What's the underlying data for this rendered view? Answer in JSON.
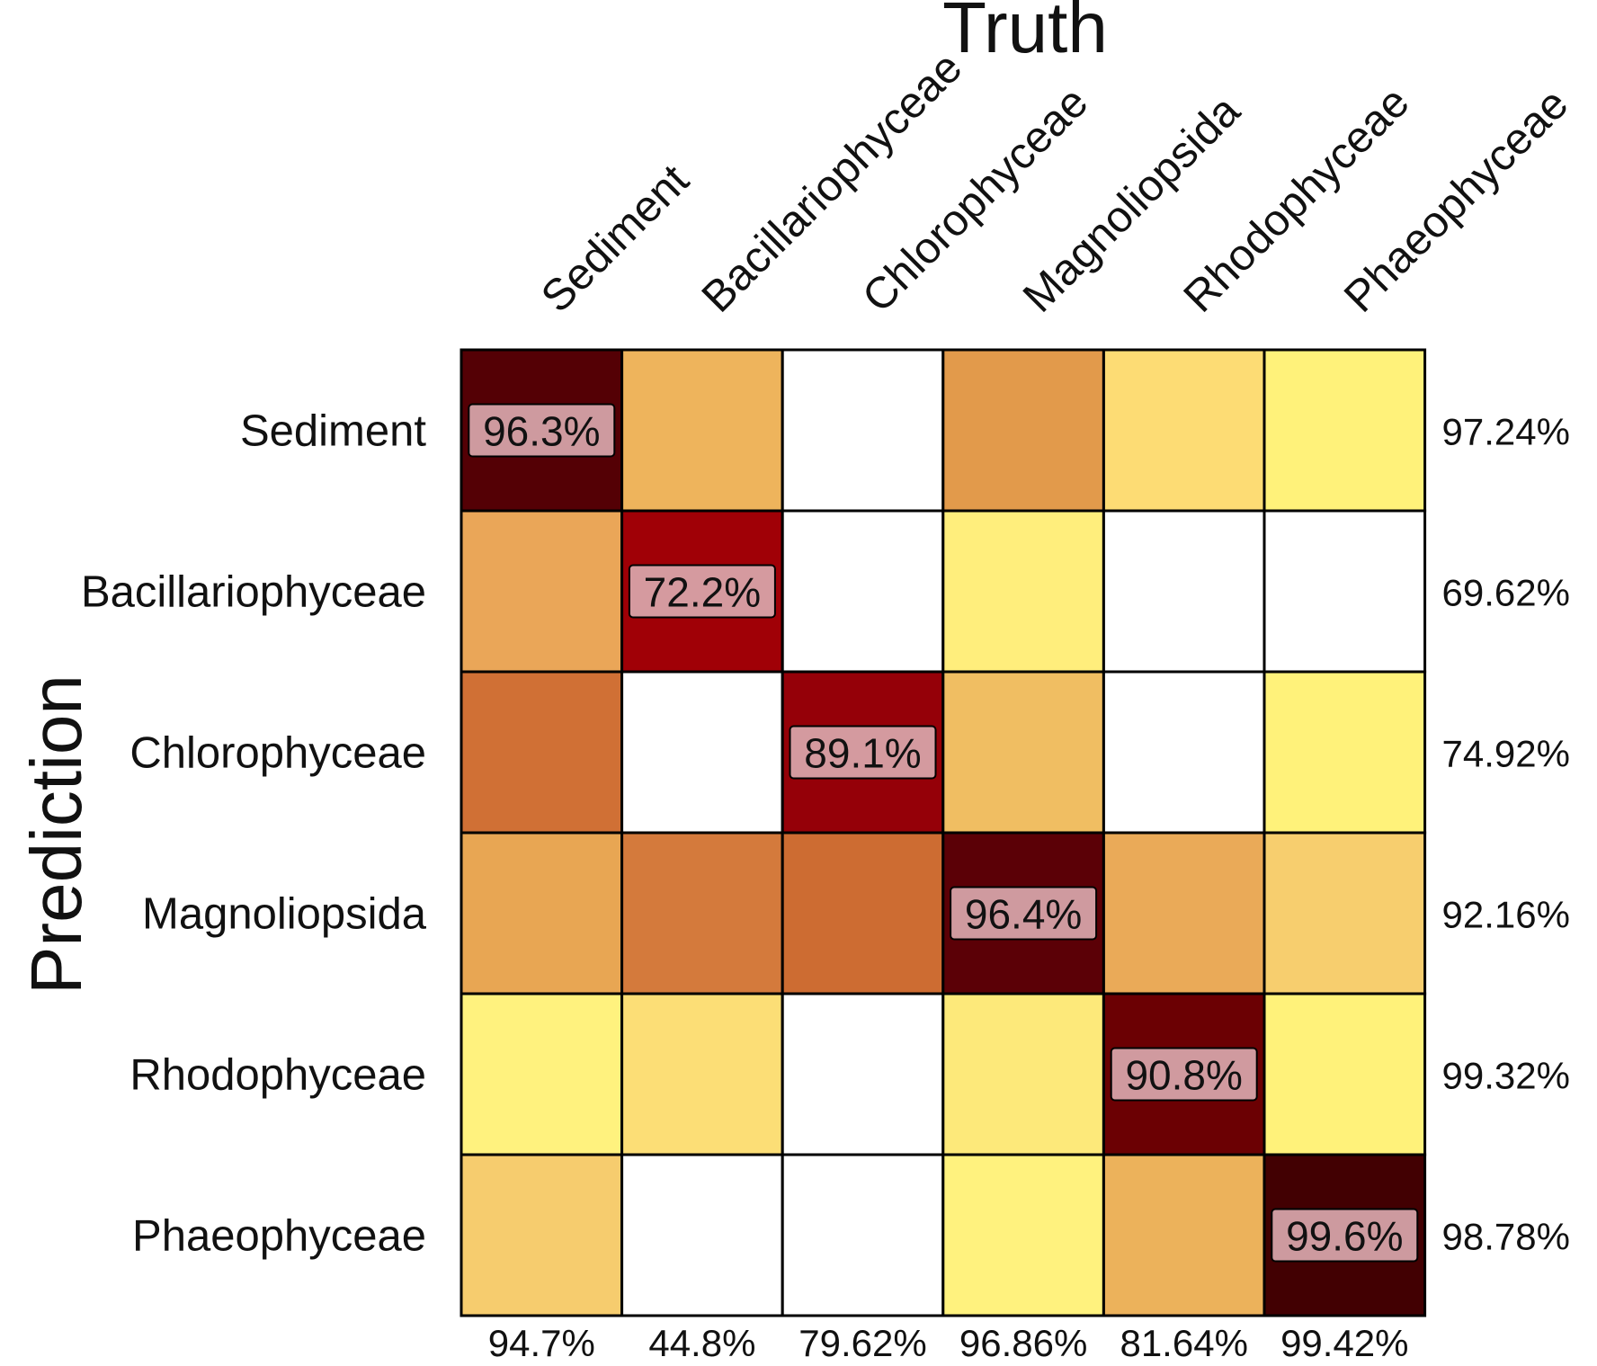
{
  "chart_data": {
    "type": "heatmap",
    "title": "Truth",
    "xlabel": "Truth",
    "ylabel": "Prediction",
    "columns": [
      "Sediment",
      "Bacillariophyceae",
      "Chlorophyceae",
      "Magnoliopsida",
      "Rhodophyceae",
      "Phaeophyceae"
    ],
    "rows": [
      "Sediment",
      "Bacillariophyceae",
      "Chlorophyceae",
      "Magnoliopsida",
      "Rhodophyceae",
      "Phaeophyceae"
    ],
    "cell_colors": [
      [
        "#540005",
        "#EEB45C",
        "#FFFFFF",
        "#E29A4B",
        "#FDDC74",
        "#FFF27A"
      ],
      [
        "#EAA658",
        "#A00006",
        "#FFFFFF",
        "#FFEE7C",
        "#FFFFFF",
        "#FFFFFF"
      ],
      [
        "#D07035",
        "#FFFFFF",
        "#950008",
        "#F0BE62",
        "#FFFFFF",
        "#FFF27A"
      ],
      [
        "#E8A653",
        "#D47A3C",
        "#CD6C32",
        "#5B0006",
        "#EAAA58",
        "#F7CE6E"
      ],
      [
        "#FFF27E",
        "#FCDE76",
        "#FFFFFF",
        "#FDE97A",
        "#6B0003",
        "#FFF27A"
      ],
      [
        "#F6CC6E",
        "#FFFFFF",
        "#FFFFFF",
        "#FFF27E",
        "#ECB25B",
        "#420002"
      ]
    ],
    "diagonal_labels": [
      "96.3%",
      "72.2%",
      "89.1%",
      "96.4%",
      "90.8%",
      "99.6%"
    ],
    "row_margin_labels": [
      "97.24%",
      "69.62%",
      "74.92%",
      "92.16%",
      "99.32%",
      "98.78%"
    ],
    "column_margin_labels": [
      "94.7%",
      "44.8%",
      "79.62%",
      "96.86%",
      "81.64%",
      "99.42%"
    ],
    "legend": "none",
    "grid": true
  }
}
